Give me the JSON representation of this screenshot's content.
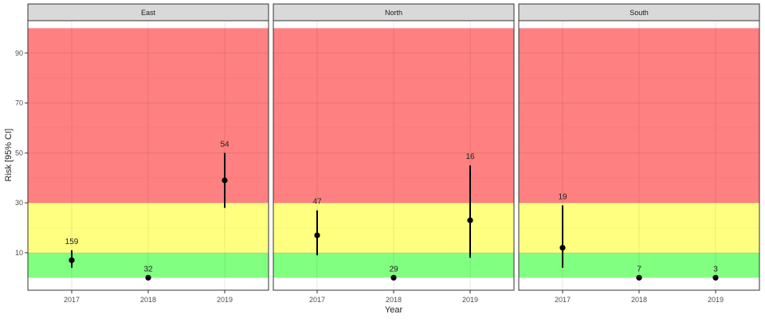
{
  "chart_data": {
    "type": "errorbar",
    "xlabel": "Year",
    "ylabel": "Risk [95% CI]",
    "x_ticks": [
      "2017",
      "2018",
      "2019"
    ],
    "y_ticks": [
      10,
      30,
      50,
      70,
      90
    ],
    "ylim": [
      -5,
      103
    ],
    "risk_bands": [
      {
        "from": 0,
        "to": 10,
        "color": "#80ff80"
      },
      {
        "from": 10,
        "to": 30,
        "color": "#ffff80"
      },
      {
        "from": 30,
        "to": 100,
        "color": "#ff8080"
      }
    ],
    "grid": true,
    "panels": [
      {
        "name": "East",
        "points": [
          {
            "x": "2017",
            "y": 7,
            "lower": 4,
            "upper": 11,
            "label": "159"
          },
          {
            "x": "2018",
            "y": 0,
            "lower": 0,
            "upper": 0,
            "label": "32"
          },
          {
            "x": "2019",
            "y": 39,
            "lower": 28,
            "upper": 50,
            "label": "54"
          }
        ]
      },
      {
        "name": "North",
        "points": [
          {
            "x": "2017",
            "y": 17,
            "lower": 9,
            "upper": 27,
            "label": "47"
          },
          {
            "x": "2018",
            "y": 0,
            "lower": 0,
            "upper": 0,
            "label": "29"
          },
          {
            "x": "2019",
            "y": 23,
            "lower": 8,
            "upper": 45,
            "label": "16"
          }
        ]
      },
      {
        "name": "South",
        "points": [
          {
            "x": "2017",
            "y": 12,
            "lower": 4,
            "upper": 29,
            "label": "19"
          },
          {
            "x": "2018",
            "y": 0,
            "lower": 0,
            "upper": 0,
            "label": "7"
          },
          {
            "x": "2019",
            "y": 0,
            "lower": 0,
            "upper": 0,
            "label": "3"
          }
        ]
      }
    ]
  }
}
